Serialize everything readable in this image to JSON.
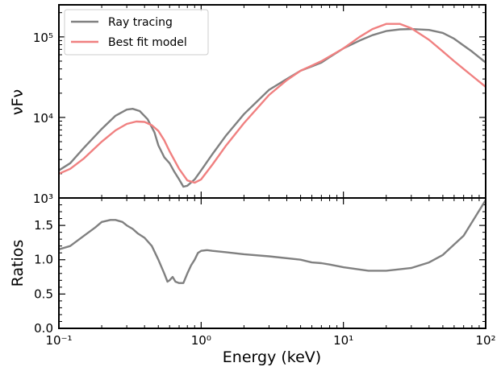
{
  "chart_data": [
    {
      "type": "line",
      "panel": "top",
      "xscale": "log",
      "yscale": "log",
      "xlim": [
        0.1,
        100
      ],
      "ylim": [
        1000,
        250000
      ],
      "xlabel": "",
      "ylabel": "νFν",
      "yticks": [
        {
          "value": 1000,
          "label": "10³"
        },
        {
          "value": 10000,
          "label": "10⁴"
        },
        {
          "value": 100000,
          "label": "10⁵"
        }
      ],
      "legend": "top-left",
      "series": [
        {
          "name": "Ray tracing",
          "color": "#808080",
          "x": [
            0.1,
            0.12,
            0.15,
            0.2,
            0.25,
            0.3,
            0.33,
            0.37,
            0.42,
            0.47,
            0.5,
            0.55,
            0.6,
            0.65,
            0.7,
            0.75,
            0.8,
            0.9,
            1.0,
            1.2,
            1.5,
            2,
            3,
            4,
            5,
            6,
            7,
            8,
            10,
            13,
            16,
            20,
            25,
            30,
            40,
            50,
            60,
            70,
            80,
            100
          ],
          "y": [
            2200,
            2700,
            4200,
            7200,
            10500,
            12500,
            12800,
            12000,
            9500,
            6500,
            4500,
            3200,
            2700,
            2100,
            1700,
            1380,
            1420,
            1700,
            2200,
            3500,
            6000,
            11000,
            22000,
            30000,
            38000,
            43000,
            48000,
            56000,
            72000,
            90000,
            105000,
            118000,
            124000,
            125000,
            122000,
            112000,
            95000,
            78000,
            66000,
            48000
          ]
        },
        {
          "name": "Best fit model",
          "color": "#f08080",
          "x": [
            0.1,
            0.12,
            0.15,
            0.2,
            0.25,
            0.3,
            0.35,
            0.4,
            0.45,
            0.5,
            0.55,
            0.6,
            0.7,
            0.8,
            0.9,
            1.0,
            1.2,
            1.5,
            2,
            3,
            4,
            5,
            7,
            10,
            13,
            16,
            20,
            25,
            30,
            40,
            50,
            60,
            70,
            80,
            100
          ],
          "y": [
            2000,
            2300,
            3100,
            5000,
            6900,
            8300,
            8900,
            8800,
            8000,
            6800,
            5200,
            3800,
            2300,
            1650,
            1550,
            1700,
            2600,
            4500,
            8500,
            19000,
            29000,
            38000,
            50000,
            72000,
            100000,
            125000,
            145000,
            145000,
            128000,
            92000,
            66000,
            50000,
            40000,
            33000,
            24000
          ]
        }
      ]
    },
    {
      "type": "line",
      "panel": "bottom",
      "xscale": "log",
      "xlim": [
        0.1,
        100
      ],
      "ylim": [
        0,
        1.9
      ],
      "xlabel": "Energy (keV)",
      "ylabel": "Ratios",
      "xticks": [
        {
          "value": 0.1,
          "label": "10⁻¹"
        },
        {
          "value": 1,
          "label": "10⁰"
        },
        {
          "value": 10,
          "label": "10¹"
        },
        {
          "value": 100,
          "label": "10²"
        }
      ],
      "yticks": [
        {
          "value": 0.0,
          "label": "0.0"
        },
        {
          "value": 0.5,
          "label": "0.5"
        },
        {
          "value": 1.0,
          "label": "1.0"
        },
        {
          "value": 1.5,
          "label": "1.5"
        }
      ],
      "series": [
        {
          "name": "",
          "color": "#808080",
          "x": [
            0.1,
            0.12,
            0.15,
            0.18,
            0.2,
            0.23,
            0.25,
            0.28,
            0.3,
            0.33,
            0.36,
            0.4,
            0.45,
            0.5,
            0.55,
            0.58,
            0.6,
            0.63,
            0.66,
            0.7,
            0.75,
            0.8,
            0.85,
            0.9,
            0.95,
            1.0,
            1.1,
            1.2,
            1.5,
            2,
            3,
            5,
            6,
            7,
            8,
            10,
            15,
            20,
            30,
            40,
            50,
            70,
            100
          ],
          "y": [
            1.15,
            1.2,
            1.35,
            1.47,
            1.55,
            1.58,
            1.58,
            1.55,
            1.5,
            1.45,
            1.38,
            1.32,
            1.2,
            1.0,
            0.8,
            0.68,
            0.7,
            0.75,
            0.68,
            0.66,
            0.66,
            0.8,
            0.92,
            1.0,
            1.1,
            1.13,
            1.14,
            1.13,
            1.11,
            1.08,
            1.05,
            1.0,
            0.96,
            0.95,
            0.93,
            0.89,
            0.84,
            0.84,
            0.88,
            0.96,
            1.07,
            1.35,
            1.87
          ]
        }
      ]
    }
  ]
}
